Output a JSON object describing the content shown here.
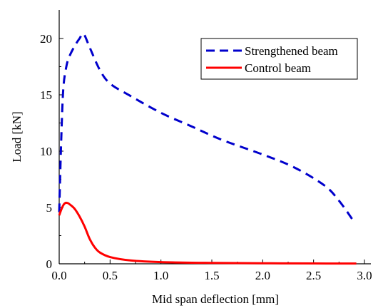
{
  "chart_data": {
    "type": "line",
    "title": "",
    "xlabel": "Mid span deflection [mm]",
    "ylabel": "Load [kN]",
    "xlim": [
      0,
      3.0
    ],
    "ylim": [
      0,
      22
    ],
    "x_ticks": [
      0.0,
      0.5,
      1.0,
      1.5,
      2.0,
      2.5,
      3.0
    ],
    "x_tick_labels": [
      "0.0",
      "0.5",
      "1.0",
      "1.5",
      "2.0",
      "2.5",
      "3.0"
    ],
    "y_ticks": [
      0,
      5,
      10,
      15,
      20
    ],
    "y_tick_labels": [
      "0",
      "5",
      "10",
      "15",
      "20"
    ],
    "grid": false,
    "legend_position": "top-right",
    "series": [
      {
        "name": "Strengthened beam",
        "color": "#0000cc",
        "line_style": "dashed",
        "points": [
          [
            0.0,
            4.6
          ],
          [
            0.02,
            11.0
          ],
          [
            0.04,
            15.5
          ],
          [
            0.07,
            17.5
          ],
          [
            0.1,
            18.4
          ],
          [
            0.15,
            19.3
          ],
          [
            0.2,
            20.0
          ],
          [
            0.24,
            20.4
          ],
          [
            0.3,
            19.2
          ],
          [
            0.4,
            17.2
          ],
          [
            0.5,
            16.0
          ],
          [
            0.7,
            14.9
          ],
          [
            1.0,
            13.4
          ],
          [
            1.3,
            12.2
          ],
          [
            1.6,
            11.0
          ],
          [
            2.0,
            9.7
          ],
          [
            2.3,
            8.6
          ],
          [
            2.6,
            7.0
          ],
          [
            2.75,
            5.6
          ],
          [
            2.9,
            3.7
          ]
        ]
      },
      {
        "name": "Control beam",
        "color": "#ff0000",
        "line_style": "solid",
        "points": [
          [
            0.0,
            4.3
          ],
          [
            0.02,
            4.8
          ],
          [
            0.04,
            5.2
          ],
          [
            0.06,
            5.4
          ],
          [
            0.08,
            5.4
          ],
          [
            0.1,
            5.3
          ],
          [
            0.15,
            4.9
          ],
          [
            0.2,
            4.2
          ],
          [
            0.25,
            3.3
          ],
          [
            0.3,
            2.2
          ],
          [
            0.35,
            1.45
          ],
          [
            0.4,
            1.0
          ],
          [
            0.5,
            0.6
          ],
          [
            0.7,
            0.3
          ],
          [
            1.0,
            0.15
          ],
          [
            1.5,
            0.08
          ],
          [
            2.0,
            0.05
          ],
          [
            2.5,
            0.03
          ],
          [
            2.92,
            0.02
          ]
        ]
      }
    ]
  }
}
